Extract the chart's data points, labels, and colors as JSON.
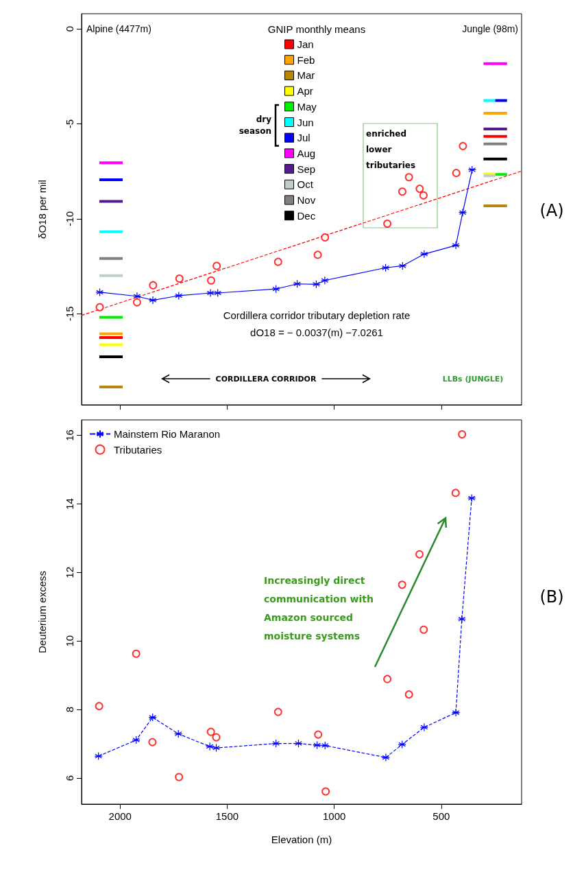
{
  "chart_data": [
    {
      "type": "line",
      "ylabel": "δO18 per mil",
      "legend_title": "GNIP monthly means",
      "legend": "top",
      "xlim": [
        2180,
        125
      ],
      "xticks": [
        2000,
        1500,
        1000,
        500
      ],
      "ylim": [
        -19.8,
        0.8
      ],
      "yticks": [
        0,
        -5,
        -10,
        -15
      ],
      "tick_labels": "y",
      "grid": false,
      "annotations": [
        "Alpine (4477m)",
        "Jungle (98m)",
        "dry\nseason",
        "enriched\nlower\ntributaries",
        "Cordillera corridor tributary depletion rate\ndO18 = − 0.0037(m) −7.0261",
        "CORDILLERA CORRIDOR",
        "LLBs (JUNGLE)",
        "(A)"
      ],
      "series": [
        {
          "name": "Jan",
          "color": "#ff0000",
          "marker": "none",
          "x": [
            2097,
            1988,
            null,
            303,
            193
          ],
          "values": [
            -16.26,
            -16.26,
            null,
            -5.66,
            -5.66
          ]
        },
        {
          "name": "Feb",
          "color": "#ffa500",
          "marker": "none",
          "x": [
            2097,
            1988,
            null,
            303,
            193
          ],
          "values": [
            -16.06,
            -16.06,
            null,
            -4.44,
            -4.44
          ]
        },
        {
          "name": "Mar",
          "color": "#b8860b",
          "marker": "none",
          "x": [
            2097,
            1988,
            null,
            303,
            193
          ],
          "values": [
            -18.86,
            -18.86,
            null,
            -9.32,
            -9.32
          ]
        },
        {
          "name": "Apr",
          "color": "#ffff00",
          "marker": "none",
          "x": [
            2097,
            1988,
            null,
            303,
            248
          ],
          "values": [
            -16.64,
            -16.64,
            null,
            -7.63,
            -7.63
          ]
        },
        {
          "name": "May",
          "color": "#00ee00",
          "marker": "none",
          "x": [
            2097,
            1988,
            null,
            248,
            193
          ],
          "values": [
            -15.19,
            -15.19,
            null,
            -7.67,
            -7.67
          ]
        },
        {
          "name": "Jun",
          "color": "#00ffff",
          "marker": "none",
          "x": [
            2097,
            1988,
            null,
            303,
            248
          ],
          "values": [
            -10.68,
            -10.68,
            null,
            -3.77,
            -3.77
          ]
        },
        {
          "name": "Jul",
          "color": "#0000ff",
          "marker": "none",
          "x": [
            2097,
            1988,
            null,
            248,
            193
          ],
          "values": [
            -7.95,
            -7.95,
            null,
            -3.77,
            -3.77
          ]
        },
        {
          "name": "Aug",
          "color": "#ff00ff",
          "marker": "none",
          "x": [
            2097,
            1988,
            null,
            303,
            193
          ],
          "values": [
            -7.05,
            -7.05,
            null,
            -1.83,
            -1.83
          ]
        },
        {
          "name": "Sep",
          "color": "#551a8b",
          "marker": "none",
          "x": [
            2097,
            1988,
            null,
            303,
            193
          ],
          "values": [
            -9.08,
            -9.08,
            null,
            -5.27,
            -5.27
          ]
        },
        {
          "name": "Oct",
          "color": "#c1cdcd",
          "marker": "none",
          "x": [
            2097,
            1988,
            null,
            303,
            248
          ],
          "values": [
            -13.0,
            -13.0,
            null,
            -7.74,
            -7.74
          ]
        },
        {
          "name": "Nov",
          "color": "#808080",
          "marker": "none",
          "x": [
            2097,
            1988,
            null,
            303,
            193
          ],
          "values": [
            -12.09,
            -12.09,
            null,
            -6.06,
            -6.06
          ]
        },
        {
          "name": "Dec",
          "color": "#000000",
          "marker": "none",
          "x": [
            2097,
            1988,
            null,
            303,
            193
          ],
          "values": [
            -17.27,
            -17.27,
            null,
            -6.85,
            -6.85
          ]
        },
        {
          "type": "line",
          "color": "#ff0000",
          "marker": "none",
          "line_style": "dashed",
          "x": [
            2180,
            125
          ],
          "values": [
            -15.09,
            -7.49
          ]
        },
        {
          "type": "line",
          "color": "#0000ff",
          "marker": "cross",
          "line_style": "solid",
          "x": [
            2095,
            1921,
            1847,
            1726,
            1578,
            1544,
            1272,
            1173,
            1084,
            1044,
            760,
            681,
            580,
            432,
            400,
            356
          ],
          "values": [
            -13.87,
            -14.08,
            -14.29,
            -14.05,
            -13.91,
            -13.91,
            -13.7,
            -13.43,
            -13.45,
            -13.25,
            -12.58,
            -12.48,
            -11.86,
            -11.4,
            -9.67,
            -7.42
          ]
        },
        {
          "type": "scatter",
          "color": "#ff0000",
          "marker": "circle",
          "x": [
            2095,
            1921,
            1846,
            1723,
            1575,
            1549,
            1262,
            1077,
            1043,
            752,
            682,
            651,
            601,
            583,
            430,
            399
          ],
          "values": [
            -14.66,
            -14.4,
            -13.5,
            -13.15,
            -13.25,
            -12.48,
            -12.27,
            -11.9,
            -10.98,
            -10.26,
            -8.57,
            -7.81,
            -8.42,
            -8.77,
            -7.59,
            -6.17
          ]
        }
      ]
    },
    {
      "type": "line",
      "xlabel": "Elevation (m)",
      "ylabel": "Deuterium excess",
      "legend": "top left",
      "xlim": [
        2180,
        125
      ],
      "xticks": [
        2000,
        1500,
        1000,
        500
      ],
      "ylim": [
        5.24,
        16.45
      ],
      "yticks": [
        6,
        8,
        10,
        12,
        14,
        16
      ],
      "grid": false,
      "annotations": [
        "Increasingly direct\ncommunication with\nAmazon sourced\nmoisture systems",
        "(B)"
      ],
      "series": [
        {
          "name": "Mainstem Rio Maranon",
          "color": "#0000ff",
          "marker": "cross",
          "line_style": "dashed",
          "x": [
            2101,
            1925,
            1848,
            1728,
            1581,
            1551,
            1272,
            1167,
            1080,
            1043,
            759,
            683,
            580,
            432,
            404,
            358
          ],
          "values": [
            6.64,
            7.11,
            7.77,
            7.29,
            6.92,
            6.88,
            7.01,
            7.01,
            6.96,
            6.95,
            6.6,
            6.98,
            7.48,
            7.91,
            10.64,
            14.17
          ]
        },
        {
          "name": "Tributaries",
          "type": "scatter",
          "color": "#ff0000",
          "marker": "circle",
          "x": [
            2098,
            1925,
            1849,
            1725,
            1576,
            1551,
            1262,
            1075,
            1040,
            752,
            651,
            582,
            683,
            602,
            433,
            403
          ],
          "values": [
            8.1,
            9.63,
            7.05,
            6.03,
            7.35,
            7.19,
            7.93,
            7.27,
            5.61,
            8.89,
            8.44,
            10.33,
            11.64,
            12.53,
            14.32,
            16.03
          ]
        }
      ]
    }
  ]
}
